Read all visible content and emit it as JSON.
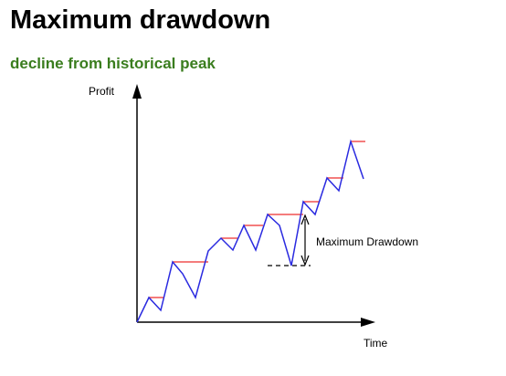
{
  "header": {
    "title": "Maximum drawdown",
    "subtitle": "decline from historical peak"
  },
  "diagram": {
    "y_axis_label": "Profit",
    "x_axis_label": "Time",
    "annotation_label": "Maximum Drawdown"
  },
  "colors": {
    "subtitle": "#3a7d1e",
    "profit_line": "#2a2ae0",
    "peak_marker": "#f05050",
    "axis": "#000000"
  }
}
